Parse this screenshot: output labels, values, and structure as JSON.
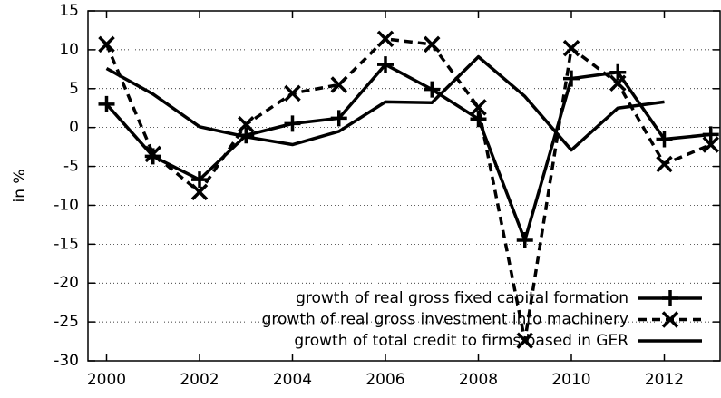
{
  "chart_data": {
    "type": "line",
    "ylabel": "in %",
    "x": [
      2000,
      2001,
      2002,
      2003,
      2004,
      2005,
      2006,
      2007,
      2008,
      2009,
      2010,
      2011,
      2012,
      2013
    ],
    "series": [
      {
        "name": "growth of real gross fixed capital formation",
        "color": "#000000",
        "line_style": "solid",
        "marker": "plus",
        "values": [
          3.0,
          -3.7,
          -6.7,
          -1.0,
          0.5,
          1.2,
          8.1,
          4.9,
          1.1,
          -14.5,
          6.3,
          7.1,
          -1.5,
          -0.9
        ]
      },
      {
        "name": "growth of real gross investment into machinery",
        "color": "#000000",
        "line_style": "dashed",
        "marker": "cross",
        "values": [
          10.7,
          -3.4,
          -8.3,
          0.4,
          4.4,
          5.5,
          11.4,
          10.7,
          2.6,
          -27.4,
          10.2,
          5.7,
          -4.7,
          -2.2
        ]
      },
      {
        "name": "growth of total credit to firms based in GER",
        "color": "#000000",
        "line_style": "solid",
        "marker": "none",
        "values": [
          7.6,
          4.3,
          0.1,
          -1.2,
          -2.2,
          -0.5,
          3.3,
          3.2,
          9.1,
          4.0,
          -2.9,
          2.5,
          3.3,
          null
        ]
      }
    ],
    "xlim": [
      1999.6,
      2013.2
    ],
    "xticks": [
      2000,
      2002,
      2004,
      2006,
      2008,
      2010,
      2012
    ],
    "ylim": [
      -30,
      15
    ],
    "yticks": [
      -30,
      -25,
      -20,
      -15,
      -10,
      -5,
      0,
      5,
      10,
      15
    ],
    "grid": true,
    "legend_position": "lower right"
  }
}
